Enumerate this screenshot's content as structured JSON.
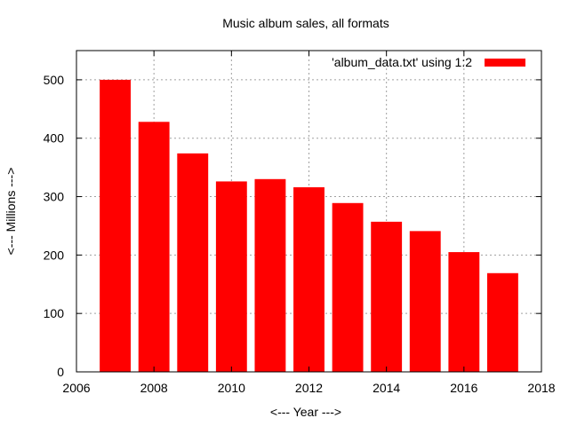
{
  "chart_data": {
    "type": "bar",
    "title": "Music album sales, all formats",
    "xlabel": "<--- Year --->",
    "ylabel": "<--- Millions --->",
    "x": [
      2007,
      2008,
      2009,
      2010,
      2011,
      2012,
      2013,
      2014,
      2015,
      2016,
      2017
    ],
    "series": [
      {
        "name": "'album_data.txt' using 1:2",
        "color": "#ff0000",
        "values": [
          500,
          428,
          374,
          326,
          330,
          316,
          289,
          257,
          241,
          205,
          169
        ]
      }
    ],
    "xlim": [
      2006,
      2018
    ],
    "ylim": [
      0,
      550
    ],
    "xticks": [
      2006,
      2008,
      2010,
      2012,
      2014,
      2016,
      2018
    ],
    "yticks": [
      0,
      100,
      200,
      300,
      400,
      500
    ],
    "grid": true,
    "legend_position": "top-right"
  }
}
